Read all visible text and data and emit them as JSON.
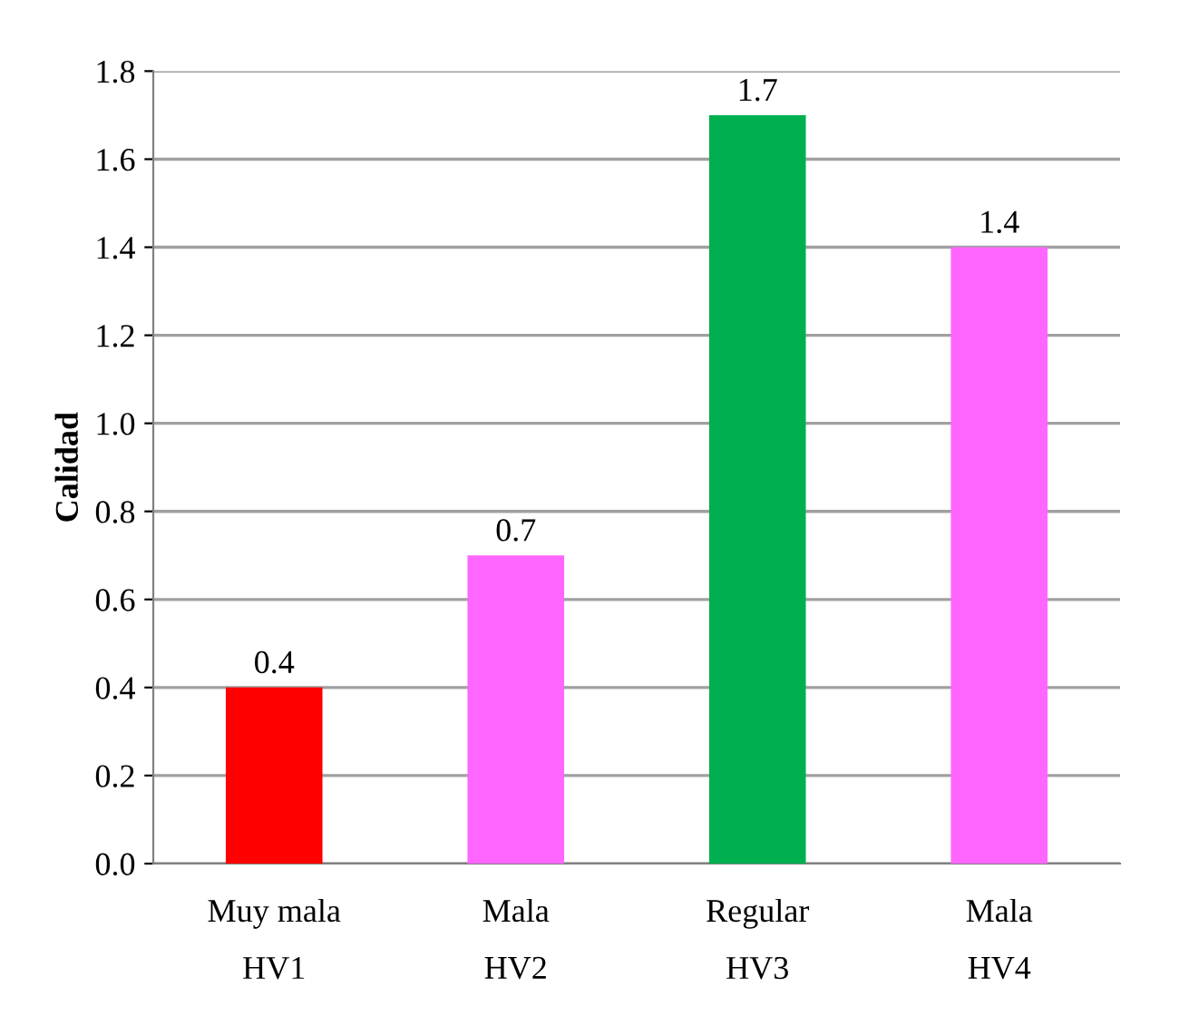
{
  "chart_data": {
    "type": "bar",
    "ylabel": "Calidad",
    "categories": [
      "Muy mala\nHV1",
      "Mala\nHV2",
      "Regular\nHV3",
      "Mala\nHV4"
    ],
    "values": [
      0.4,
      0.7,
      1.7,
      1.4
    ],
    "colors": [
      "#ff0000",
      "#ff66ff",
      "#00b050",
      "#ff66ff"
    ],
    "ylim": [
      0,
      1.8
    ],
    "yticks": [
      {
        "value": 0,
        "label": "0.0"
      },
      {
        "value": 0.2,
        "label": "0.2"
      },
      {
        "value": 0.4,
        "label": "0.4"
      },
      {
        "value": 0.6,
        "label": "0.6"
      },
      {
        "value": 0.8,
        "label": "0.8"
      },
      {
        "value": 1.0,
        "label": "1.0"
      },
      {
        "value": 1.2,
        "label": "1.2"
      },
      {
        "value": 1.4,
        "label": "1.4"
      },
      {
        "value": 1.6,
        "label": "1.6"
      },
      {
        "value": 1.8,
        "label": "1.8"
      }
    ],
    "grid": "y",
    "data_labels": true
  }
}
